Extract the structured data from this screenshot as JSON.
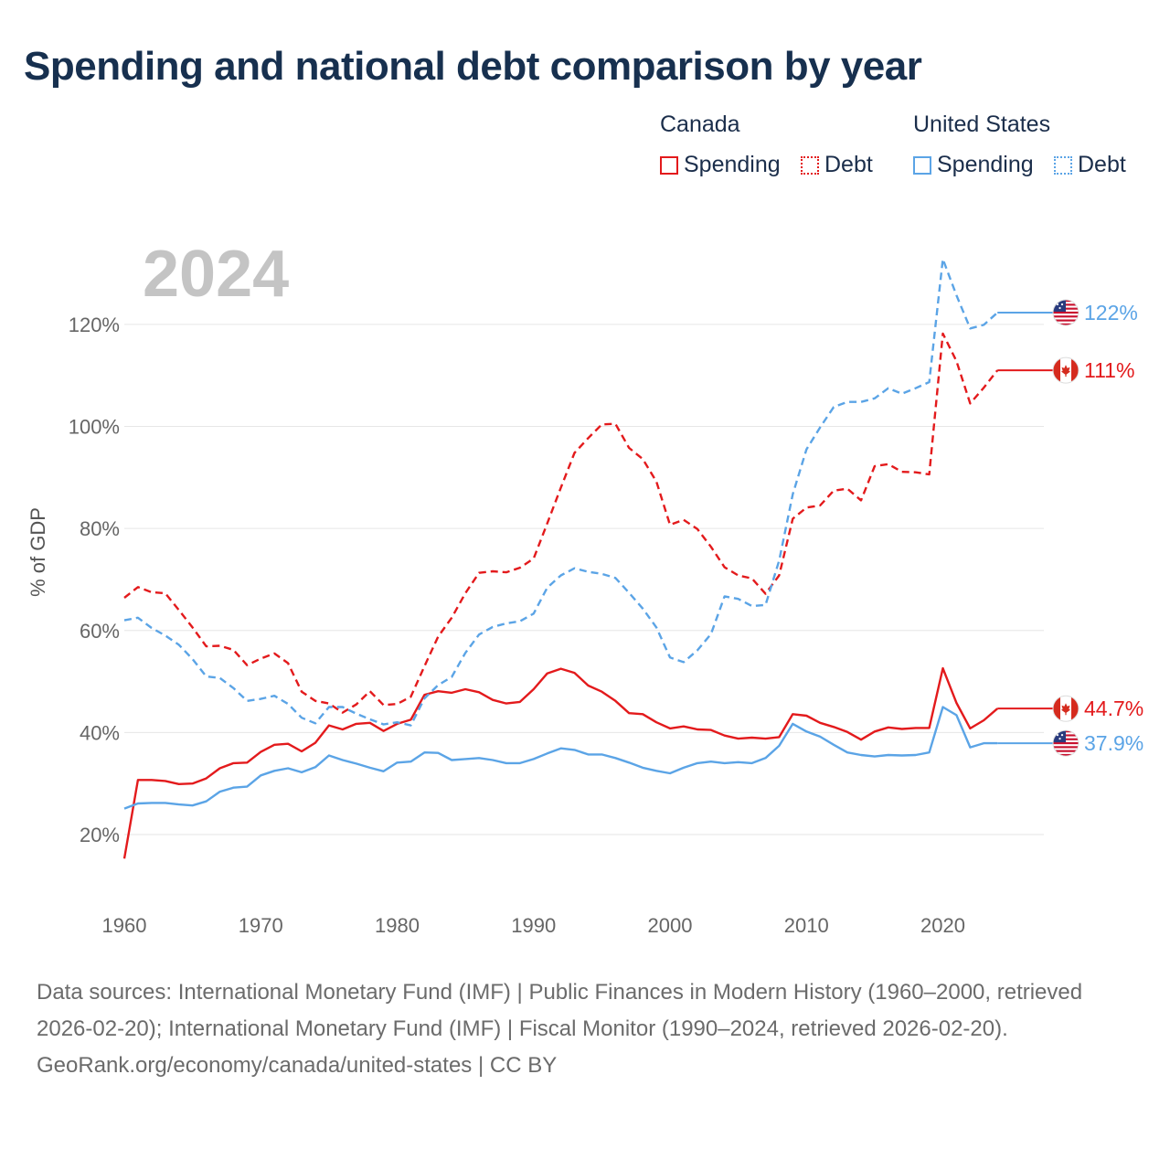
{
  "title": "Spending and national debt comparison by year",
  "legend": {
    "groups": [
      {
        "title": "Canada",
        "items": [
          {
            "label": "Spending",
            "style": "solid",
            "color": "#e31a1c"
          },
          {
            "label": "Debt",
            "style": "dotted",
            "color": "#e31a1c"
          }
        ]
      },
      {
        "title": "United States",
        "items": [
          {
            "label": "Spending",
            "style": "solid",
            "color": "#5ba4e6"
          },
          {
            "label": "Debt",
            "style": "dotted",
            "color": "#5ba4e6"
          }
        ]
      }
    ]
  },
  "chart_data": {
    "type": "line",
    "title": "Spending and national debt comparison by year",
    "year_label": "2024",
    "xlabel": "",
    "ylabel": "% of GDP",
    "xlim": [
      1960,
      2027
    ],
    "ylim": [
      8,
      137
    ],
    "x_ticks": [
      1960,
      1970,
      1980,
      1990,
      2000,
      2010,
      2020
    ],
    "y_ticks": [
      20,
      40,
      60,
      80,
      100,
      120
    ],
    "y_tick_labels": [
      "20%",
      "40%",
      "60%",
      "80%",
      "100%",
      "120%"
    ],
    "grid": true,
    "years": [
      1960,
      1961,
      1962,
      1963,
      1964,
      1965,
      1966,
      1967,
      1968,
      1969,
      1970,
      1971,
      1972,
      1973,
      1974,
      1975,
      1976,
      1977,
      1978,
      1979,
      1980,
      1981,
      1982,
      1983,
      1984,
      1985,
      1986,
      1987,
      1988,
      1989,
      1990,
      1991,
      1992,
      1993,
      1994,
      1995,
      1996,
      1997,
      1998,
      1999,
      2000,
      2001,
      2002,
      2003,
      2004,
      2005,
      2006,
      2007,
      2008,
      2009,
      2010,
      2011,
      2012,
      2013,
      2014,
      2015,
      2016,
      2017,
      2018,
      2019,
      2020,
      2021,
      2022,
      2023,
      2024
    ],
    "series": [
      {
        "name": "Canada Spending",
        "country": "Canada",
        "color": "#e31a1c",
        "dash": "solid",
        "flag": "canada",
        "end_label": "44.7%",
        "values": [
          15.3,
          30.7,
          30.7,
          30.5,
          29.9,
          30.0,
          31.0,
          33.0,
          34.0,
          34.1,
          36.2,
          37.6,
          37.8,
          36.3,
          38.0,
          41.4,
          40.6,
          41.7,
          41.9,
          40.3,
          41.7,
          42.5,
          47.4,
          48.1,
          47.8,
          48.5,
          47.9,
          46.4,
          45.7,
          46.0,
          48.5,
          51.6,
          52.5,
          51.7,
          49.2,
          48.0,
          46.2,
          43.8,
          43.6,
          42.0,
          40.8,
          41.2,
          40.6,
          40.5,
          39.4,
          38.8,
          39.0,
          38.8,
          39.1,
          43.6,
          43.3,
          41.9,
          41.1,
          40.1,
          38.6,
          40.2,
          41.0,
          40.7,
          40.9,
          40.9,
          52.6,
          45.8,
          40.8,
          42.4,
          44.7
        ]
      },
      {
        "name": "Canada Debt",
        "country": "Canada",
        "color": "#e31a1c",
        "dash": "dashed",
        "flag": "canada",
        "end_label": "111%",
        "values": [
          66.4,
          68.5,
          67.5,
          67.3,
          64.0,
          60.6,
          56.9,
          57.0,
          56.2,
          53.2,
          54.5,
          55.5,
          53.6,
          48.0,
          46.2,
          45.7,
          43.9,
          45.5,
          48.1,
          45.4,
          45.6,
          47.0,
          53.0,
          58.8,
          62.5,
          67.3,
          71.3,
          71.6,
          71.4,
          72.3,
          74.1,
          81.0,
          88.0,
          94.8,
          97.7,
          100.4,
          100.5,
          95.8,
          93.6,
          89.2,
          80.7,
          81.7,
          79.9,
          76.4,
          72.4,
          70.8,
          70.2,
          67.2,
          70.8,
          81.9,
          84.1,
          84.5,
          87.4,
          87.8,
          85.5,
          92.2,
          92.6,
          91.1,
          91.0,
          90.6,
          118.2,
          112.8,
          104.5,
          107.6,
          111.0
        ]
      },
      {
        "name": "United States Spending",
        "country": "United States",
        "color": "#5ba4e6",
        "dash": "solid",
        "flag": "usa",
        "end_label": "37.9%",
        "values": [
          25.1,
          26.1,
          26.2,
          26.2,
          25.9,
          25.7,
          26.5,
          28.4,
          29.2,
          29.4,
          31.6,
          32.5,
          33.0,
          32.2,
          33.2,
          35.5,
          34.6,
          33.9,
          33.1,
          32.4,
          34.1,
          34.3,
          36.1,
          36.0,
          34.6,
          34.8,
          35.0,
          34.6,
          34.0,
          34.0,
          34.8,
          35.9,
          36.9,
          36.6,
          35.7,
          35.7,
          35.0,
          34.1,
          33.1,
          32.5,
          32.0,
          33.1,
          34.0,
          34.3,
          34.0,
          34.2,
          34.0,
          35.0,
          37.4,
          41.7,
          40.2,
          39.2,
          37.6,
          36.1,
          35.6,
          35.3,
          35.6,
          35.5,
          35.6,
          36.1,
          45.0,
          43.4,
          37.1,
          37.9,
          37.9
        ]
      },
      {
        "name": "United States Debt",
        "country": "United States",
        "color": "#5ba4e6",
        "dash": "dashed",
        "flag": "usa",
        "end_label": "122%",
        "values": [
          62.0,
          62.5,
          60.5,
          59.0,
          57.2,
          54.4,
          51.0,
          50.7,
          48.7,
          46.2,
          46.6,
          47.2,
          45.6,
          42.9,
          41.8,
          45.0,
          45.0,
          43.7,
          42.6,
          41.6,
          42.0,
          41.4,
          46.7,
          49.3,
          50.9,
          55.6,
          59.2,
          60.7,
          61.4,
          61.8,
          63.3,
          68.4,
          70.8,
          72.2,
          71.5,
          71.1,
          70.3,
          67.4,
          64.3,
          60.6,
          54.7,
          53.8,
          56.1,
          59.3,
          66.7,
          66.2,
          64.8,
          65.0,
          73.7,
          86.7,
          95.5,
          99.8,
          103.8,
          104.8,
          104.8,
          105.5,
          107.5,
          106.4,
          107.5,
          108.7,
          132.8,
          125.7,
          119.2,
          119.9,
          122.3
        ]
      }
    ]
  },
  "footer": {
    "sources": "Data sources: International Monetary Fund (IMF) | Public Finances in Modern History (1960–2000, retrieved 2026-02-20); International Monetary Fund (IMF) | Fiscal Monitor (1990–2024, retrieved 2026-02-20).",
    "credit": "GeoRank.org/economy/canada/united-states | CC BY"
  }
}
